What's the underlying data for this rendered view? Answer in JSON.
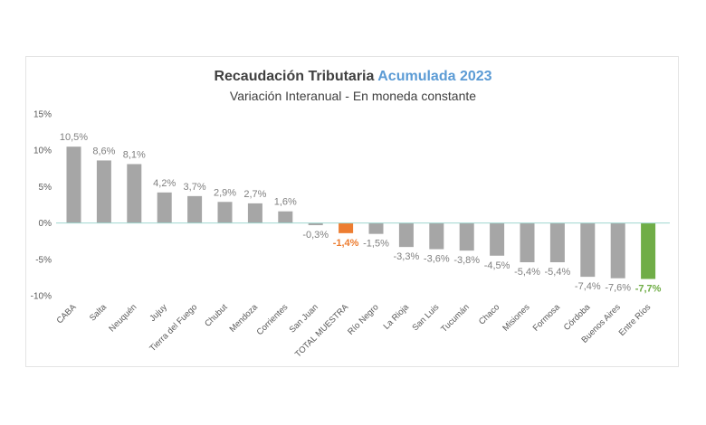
{
  "chart_data": {
    "type": "bar",
    "title_main": "Recaudación Tributaria",
    "title_accent": "Acumulada 2023",
    "subtitle": "Variación Interanual - En moneda constante",
    "categories": [
      "CABA",
      "Salta",
      "Neuquén",
      "Jujuy",
      "Tierra del Fuego",
      "Chubut",
      "Mendoza",
      "Corrientes",
      "San Juan",
      "TOTAL MUESTRA",
      "Río Negro",
      "La Rioja",
      "San Luis",
      "Tucumán",
      "Chaco",
      "Misiones",
      "Formosa",
      "Córdoba",
      "Buenos Aires",
      "Entre Ríos"
    ],
    "values": [
      10.5,
      8.6,
      8.1,
      4.2,
      3.7,
      2.9,
      2.7,
      1.6,
      -0.3,
      -1.4,
      -1.5,
      -3.3,
      -3.6,
      -3.8,
      -4.5,
      -5.4,
      -5.4,
      -7.4,
      -7.6,
      -7.7
    ],
    "data_labels": [
      "10,5%",
      "8,6%",
      "8,1%",
      "4,2%",
      "3,7%",
      "2,9%",
      "2,7%",
      "1,6%",
      "-0,3%",
      "-1,4%",
      "-1,5%",
      "-3,3%",
      "-3,6%",
      "-3,8%",
      "-4,5%",
      "-5,4%",
      "-5,4%",
      "-7,4%",
      "-7,6%",
      "-7,7%"
    ],
    "y_ticks": [
      15,
      10,
      5,
      0,
      -5,
      -10
    ],
    "y_tick_labels": [
      "15%",
      "10%",
      "5%",
      "0%",
      "-5%",
      "-10%"
    ],
    "ylim": [
      -10,
      15
    ],
    "grid": false,
    "colors": {
      "default": "#a6a6a6",
      "highlight_total": "#ed7d31",
      "highlight_last": "#70ad47",
      "zero_line": "#9fd6cf",
      "label_default": "#808080",
      "title": "#404040",
      "title_accent": "#5b9bd5"
    },
    "highlight": {
      "9": "highlight_total",
      "19": "highlight_last"
    }
  }
}
